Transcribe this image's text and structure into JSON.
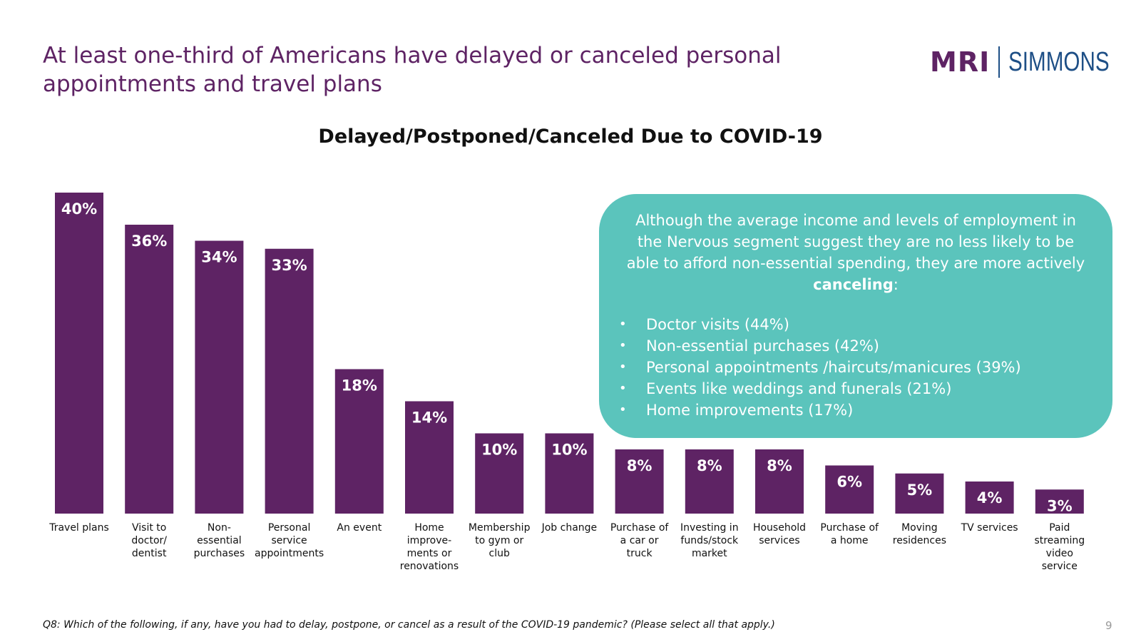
{
  "slide": {
    "title": "At least one-third of Americans have delayed or canceled personal appointments and travel plans",
    "logo": {
      "left": "MRI",
      "right": "SIMMONS"
    },
    "footnote": "Q8: Which of the following, if any, have you had to delay, postpone, or cancel as a result of the COVID-19 pandemic? (Please select all that apply.)",
    "page_number": "9"
  },
  "callout": {
    "intro_before": "Although the average income and levels of employment in the Nervous segment suggest they are no less likely to be able to afford non-essential spending, they are more actively ",
    "intro_bold": "canceling",
    "intro_after": ":",
    "bullets": [
      "Doctor visits (44%)",
      "Non-essential purchases (42%)",
      "Personal appointments /haircuts/manicures (39%)",
      "Events like weddings and funerals (21%)",
      "Home improvements (17%)"
    ]
  },
  "colors": {
    "bar": "#5e2364",
    "title": "#5e2364",
    "callout": "#5bc4bc",
    "logo_secondary": "#1e4f86"
  },
  "chart_data": {
    "type": "bar",
    "title": "Delayed/Postponed/Canceled Due to COVID-19",
    "categories": [
      [
        "Travel plans"
      ],
      [
        "Visit to",
        "doctor/",
        "dentist"
      ],
      [
        "Non-",
        "essential",
        "purchases"
      ],
      [
        "Personal",
        "service",
        "appointments"
      ],
      [
        "An event"
      ],
      [
        "Home",
        "improve-",
        "ments or",
        "renovations"
      ],
      [
        "Membership",
        "to gym or",
        "club"
      ],
      [
        "Job change"
      ],
      [
        "Purchase of",
        "a car or",
        "truck"
      ],
      [
        "Investing in",
        "funds/stock",
        "market"
      ],
      [
        "Household",
        "services"
      ],
      [
        "Purchase of",
        "a home"
      ],
      [
        "Moving",
        "residences"
      ],
      [
        "TV services"
      ],
      [
        "Paid",
        "streaming",
        "video",
        "service"
      ]
    ],
    "values": [
      40,
      36,
      34,
      33,
      18,
      14,
      10,
      10,
      8,
      8,
      8,
      6,
      5,
      4,
      3
    ],
    "value_labels": [
      "40%",
      "36%",
      "34%",
      "33%",
      "18%",
      "14%",
      "10%",
      "10%",
      "8%",
      "8%",
      "8%",
      "6%",
      "5%",
      "4%",
      "3%"
    ],
    "ylim": [
      0,
      40
    ],
    "grid": false,
    "legend": "none"
  }
}
